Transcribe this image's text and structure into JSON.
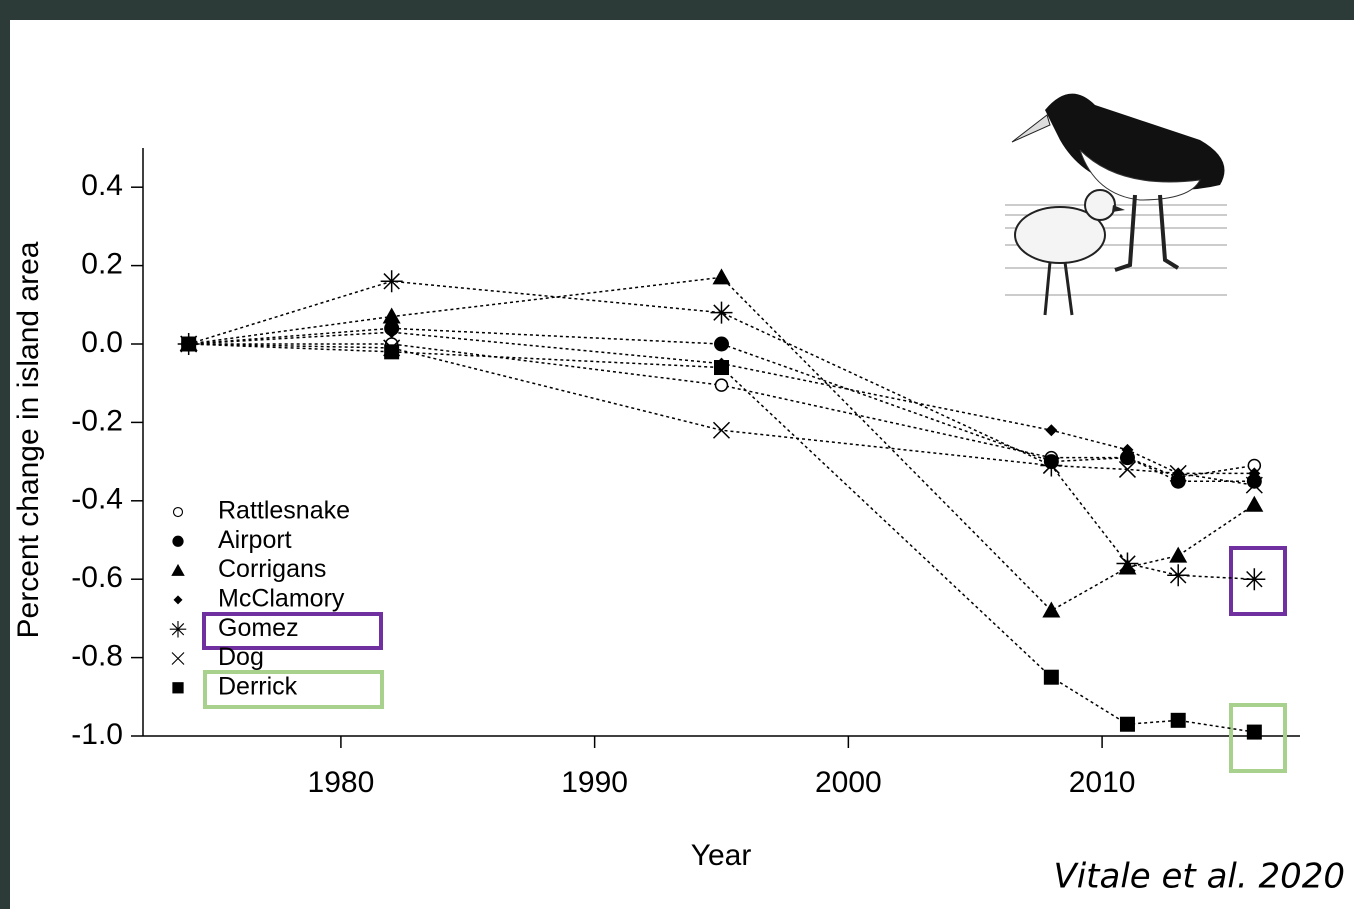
{
  "chart_data": {
    "type": "line",
    "x_label": "Year",
    "y_label": "Percent change in island area",
    "citation": "Vitale et al. 2020",
    "x": [
      1974,
      1982,
      1995,
      2008,
      2011,
      2013,
      2016
    ],
    "xlim": [
      1972.2,
      2017.8
    ],
    "xticks": [
      1980,
      1990,
      2000,
      2010
    ],
    "ylim": [
      -1.0,
      0.5
    ],
    "yticks": [
      0.4,
      0.2,
      {
        "value": 0,
        "label": "0.0"
      },
      -0.2,
      -0.4,
      -0.6,
      -0.8,
      {
        "value": -1.0,
        "label": "-1.0"
      }
    ],
    "series": [
      {
        "name": "Rattlesnake",
        "color": "#000000",
        "marker": "circle-open",
        "values": [
          0,
          0.0,
          -0.105,
          -0.29,
          -0.29,
          -0.34,
          -0.31
        ]
      },
      {
        "name": "Airport",
        "color": "#000000",
        "marker": "circle",
        "values": [
          0,
          0.04,
          0.0,
          -0.3,
          -0.29,
          -0.35,
          -0.35
        ]
      },
      {
        "name": "Corrigans",
        "color": "#000000",
        "marker": "triangle",
        "values": [
          0,
          0.07,
          0.17,
          -0.68,
          -0.57,
          -0.54,
          -0.41
        ]
      },
      {
        "name": "McClamory",
        "color": "#000000",
        "marker": "diamond",
        "values": [
          0,
          0.03,
          -0.05,
          -0.22,
          -0.27,
          -0.33,
          -0.33
        ]
      },
      {
        "name": "Gomez",
        "color": "#000000",
        "marker": "asterisk",
        "values": [
          0,
          0.16,
          0.08,
          -0.31,
          -0.56,
          -0.59,
          -0.6
        ]
      },
      {
        "name": "Dog",
        "color": "#000000",
        "marker": "cross",
        "values": [
          0,
          -0.01,
          -0.22,
          -0.31,
          -0.32,
          -0.33,
          -0.36
        ]
      },
      {
        "name": "Derrick",
        "color": "#000000",
        "marker": "square",
        "values": [
          0,
          -0.02,
          -0.06,
          -0.85,
          -0.97,
          -0.96,
          -0.99
        ]
      }
    ]
  }
}
